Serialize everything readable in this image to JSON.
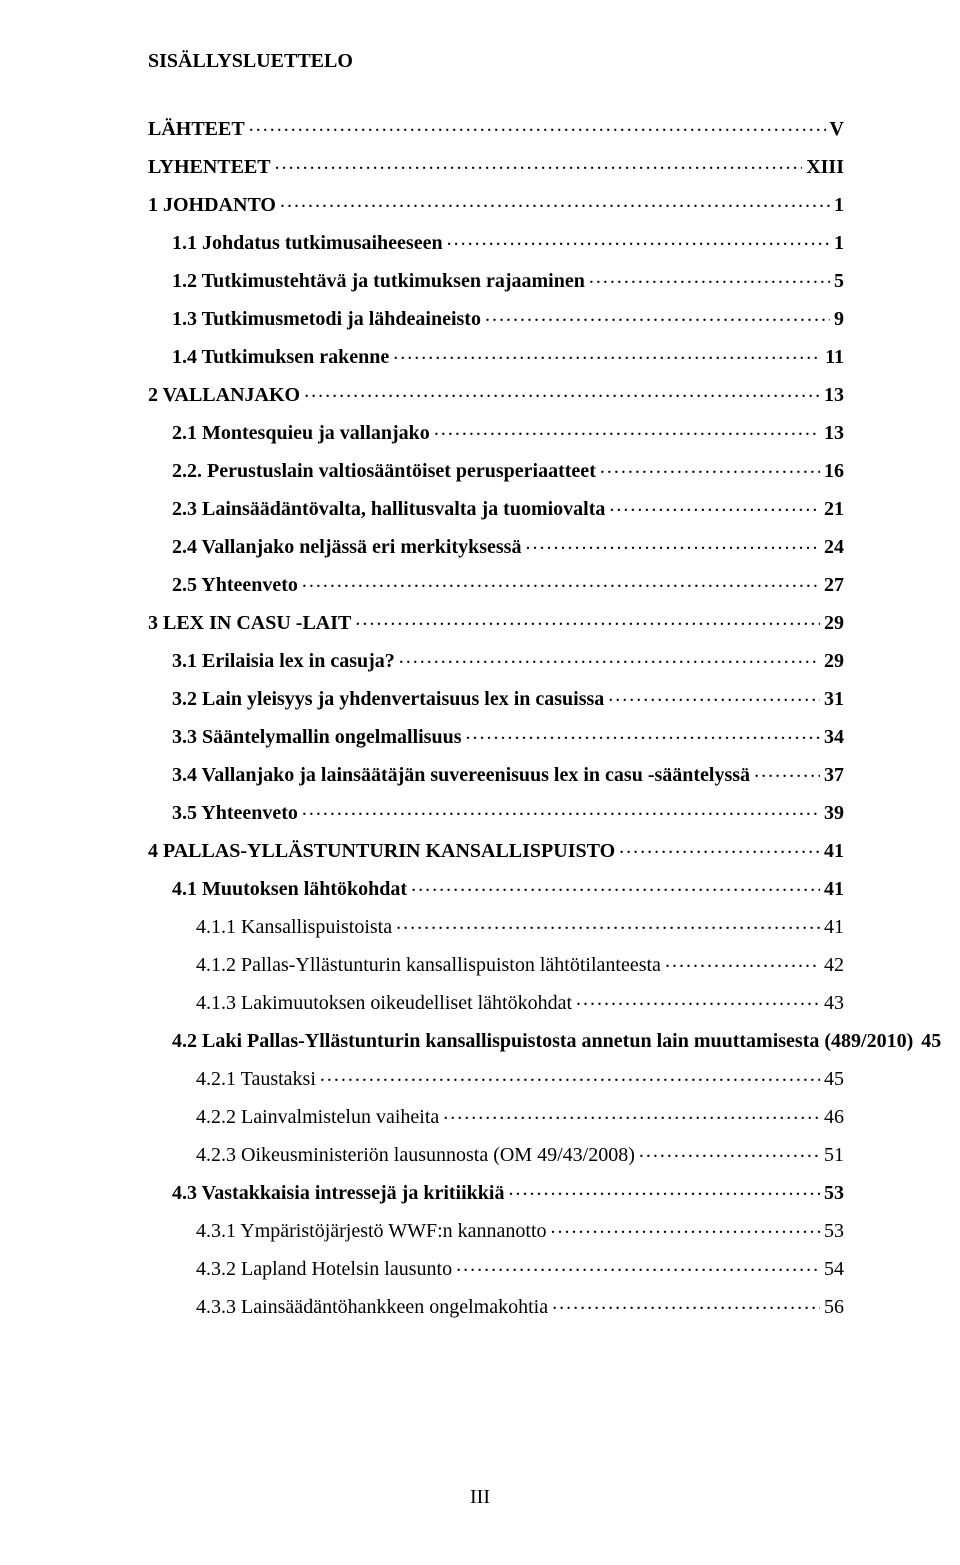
{
  "title": "SISÄLLYSLUETTELO",
  "footer_page": "III",
  "font": {
    "family": "Times New Roman",
    "size_pt": 12,
    "color": "#000000"
  },
  "background_color": "#ffffff",
  "entries": [
    {
      "label": "LÄHTEET",
      "page": "V",
      "indent": 0,
      "bold": true
    },
    {
      "label": "LYHENTEET",
      "page": "XIII",
      "indent": 0,
      "bold": true
    },
    {
      "label": "1 JOHDANTO",
      "page": "1",
      "indent": 0,
      "bold": true
    },
    {
      "label": "1.1 Johdatus tutkimusaiheeseen",
      "page": "1",
      "indent": 1,
      "bold": true
    },
    {
      "label": "1.2 Tutkimustehtävä ja tutkimuksen rajaaminen",
      "page": "5",
      "indent": 1,
      "bold": true
    },
    {
      "label": "1.3 Tutkimusmetodi ja lähdeaineisto",
      "page": "9",
      "indent": 1,
      "bold": true
    },
    {
      "label": "1.4 Tutkimuksen rakenne",
      "page": "11",
      "indent": 1,
      "bold": true
    },
    {
      "label": "2 VALLANJAKO",
      "page": "13",
      "indent": 0,
      "bold": true
    },
    {
      "label": "2.1 Montesquieu ja vallanjako",
      "page": "13",
      "indent": 1,
      "bold": true
    },
    {
      "label": "2.2. Perustuslain valtiosääntöiset perusperiaatteet",
      "page": "16",
      "indent": 1,
      "bold": true
    },
    {
      "label": "2.3 Lainsäädäntövalta, hallitusvalta ja tuomiovalta",
      "page": "21",
      "indent": 1,
      "bold": true
    },
    {
      "label": "2.4 Vallanjako neljässä eri merkityksessä",
      "page": "24",
      "indent": 1,
      "bold": true
    },
    {
      "label": "2.5 Yhteenveto",
      "page": "27",
      "indent": 1,
      "bold": true
    },
    {
      "label": "3 LEX IN CASU -LAIT",
      "page": "29",
      "indent": 0,
      "bold": true
    },
    {
      "label": "3.1 Erilaisia lex in casuja?",
      "page": "29",
      "indent": 1,
      "bold": true
    },
    {
      "label": "3.2 Lain yleisyys ja yhdenvertaisuus lex in casuissa",
      "page": "31",
      "indent": 1,
      "bold": true
    },
    {
      "label": "3.3 Sääntelymallin ongelmallisuus",
      "page": "34",
      "indent": 1,
      "bold": true
    },
    {
      "label": "3.4 Vallanjako ja lainsäätäjän suvereenisuus lex in casu -sääntelyssä",
      "page": "37",
      "indent": 1,
      "bold": true
    },
    {
      "label": "3.5 Yhteenveto",
      "page": "39",
      "indent": 1,
      "bold": true
    },
    {
      "label": "4 PALLAS-YLLÄSTUNTURIN KANSALLISPUISTO",
      "page": "41",
      "indent": 0,
      "bold": true
    },
    {
      "label": "4.1 Muutoksen lähtökohdat",
      "page": "41",
      "indent": 1,
      "bold": true
    },
    {
      "label": "4.1.1 Kansallispuistoista",
      "page": "41",
      "indent": 2,
      "bold": false
    },
    {
      "label": "4.1.2 Pallas-Yllästunturin kansallispuiston lähtötilanteesta",
      "page": "42",
      "indent": 2,
      "bold": false
    },
    {
      "label": "4.1.3 Lakimuutoksen oikeudelliset lähtökohdat",
      "page": "43",
      "indent": 2,
      "bold": false
    },
    {
      "label": "4.2 Laki Pallas-Yllästunturin kansallispuistosta annetun lain muuttamisesta (489/2010)",
      "page": "45",
      "indent": 1,
      "bold": true
    },
    {
      "label": "4.2.1 Taustaksi",
      "page": "45",
      "indent": 2,
      "bold": false
    },
    {
      "label": "4.2.2 Lainvalmistelun vaiheita",
      "page": "46",
      "indent": 2,
      "bold": false
    },
    {
      "label": "4.2.3 Oikeusministeriön lausunnosta (OM 49/43/2008)",
      "page": "51",
      "indent": 2,
      "bold": false
    },
    {
      "label": "4.3 Vastakkaisia intressejä ja kritiikkiä",
      "page": "53",
      "indent": 1,
      "bold": true
    },
    {
      "label": "4.3.1 Ympäristöjärjestö WWF:n kannanotto",
      "page": "53",
      "indent": 2,
      "bold": false
    },
    {
      "label": "4.3.2 Lapland Hotelsin lausunto",
      "page": "54",
      "indent": 2,
      "bold": false
    },
    {
      "label": "4.3.3 Lainsäädäntöhankkeen ongelmakohtia",
      "page": "56",
      "indent": 2,
      "bold": false
    }
  ]
}
